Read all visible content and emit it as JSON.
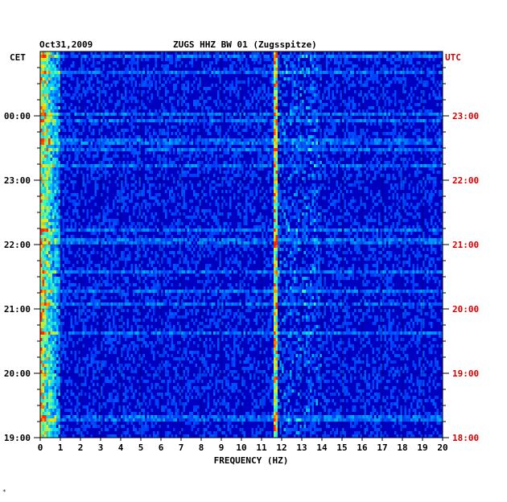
{
  "chart_data": {
    "type": "heatmap",
    "date": "Oct31,2009",
    "title": "ZUGS HHZ BW 01 (Zugsspitze)",
    "left_timezone": "CET",
    "right_timezone": "UTC",
    "xlabel": "FREQUENCY (HZ)",
    "xlim": [
      0,
      20
    ],
    "x_ticks": [
      "0",
      "1",
      "2",
      "3",
      "4",
      "5",
      "6",
      "7",
      "8",
      "9",
      "10",
      "11",
      "12",
      "13",
      "14",
      "15",
      "16",
      "17",
      "18",
      "19",
      "20"
    ],
    "left_time_labels": [
      "00:00",
      "23:00",
      "22:00",
      "21:00",
      "20:00",
      "19:00"
    ],
    "right_time_labels": [
      "23:00",
      "22:00",
      "21:00",
      "20:00",
      "19:00",
      "18:00"
    ],
    "spectral_features": [
      {
        "description": "microseism energy",
        "freq_range_hz": [
          0,
          1
        ]
      },
      {
        "description": "persistent narrowband line",
        "freq_hz": 11.7
      }
    ],
    "colors": {
      "background_low": "#0000c8",
      "mid": "#00a0ff",
      "high": "#ffd000",
      "peak": "#ff0000",
      "utc_label": "#d40000"
    },
    "grid": true
  },
  "footer_mark": "*"
}
